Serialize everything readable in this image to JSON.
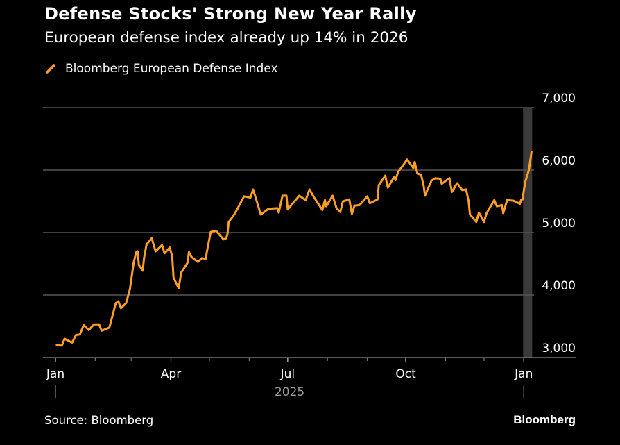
{
  "header": {
    "title": "Defense Stocks' Strong New Year Rally",
    "subtitle": "European defense index already up 14% in 2026"
  },
  "footer": {
    "source": "Source: Bloomberg",
    "brand": "Bloomberg"
  },
  "chart_data": {
    "type": "line",
    "title": "Defense Stocks' Strong New Year Rally",
    "subtitle": "European defense index already up 14% in 2026",
    "xlabel": "",
    "ylabel": "",
    "ylim": [
      3000,
      7000
    ],
    "xlim": [
      "2025-01-01",
      "2026-01-07"
    ],
    "y_ticks": [
      3000,
      4000,
      5000,
      6000,
      7000
    ],
    "y_tick_labels": [
      "3,000",
      "4,000",
      "5,000",
      "6,000",
      "7,000"
    ],
    "y_axis_position": "right",
    "x_ticks": [
      {
        "date": "2025-01-01",
        "label": "Jan"
      },
      {
        "date": "2025-04-01",
        "label": "Apr"
      },
      {
        "date": "2025-07-01",
        "label": "Jul"
      },
      {
        "date": "2025-10-01",
        "label": "Oct"
      },
      {
        "date": "2026-01-01",
        "label": "Jan"
      }
    ],
    "year_label": "2025",
    "grid": true,
    "legend_position": "top-left",
    "highlight_band": {
      "from": "2026-01-01",
      "to": "2026-01-07",
      "color": "#3a3a3a"
    },
    "colors": {
      "line": "#ff9e27",
      "background": "#000000",
      "grid": "#555555"
    },
    "series": [
      {
        "name": "Bloomberg European Defense Index",
        "points": [
          [
            "2025-01-02",
            3200
          ],
          [
            "2025-01-06",
            3190
          ],
          [
            "2025-01-08",
            3300
          ],
          [
            "2025-01-14",
            3240
          ],
          [
            "2025-01-17",
            3360
          ],
          [
            "2025-01-20",
            3370
          ],
          [
            "2025-01-23",
            3520
          ],
          [
            "2025-01-27",
            3440
          ],
          [
            "2025-01-31",
            3530
          ],
          [
            "2025-02-04",
            3530
          ],
          [
            "2025-02-06",
            3430
          ],
          [
            "2025-02-12",
            3480
          ],
          [
            "2025-02-17",
            3870
          ],
          [
            "2025-02-19",
            3900
          ],
          [
            "2025-02-21",
            3790
          ],
          [
            "2025-02-25",
            3870
          ],
          [
            "2025-02-28",
            4090
          ],
          [
            "2025-03-03",
            4530
          ],
          [
            "2025-03-05",
            4690
          ],
          [
            "2025-03-06",
            4700
          ],
          [
            "2025-03-07",
            4480
          ],
          [
            "2025-03-10",
            4390
          ],
          [
            "2025-03-11",
            4590
          ],
          [
            "2025-03-13",
            4810
          ],
          [
            "2025-03-17",
            4910
          ],
          [
            "2025-03-20",
            4700
          ],
          [
            "2025-03-25",
            4800
          ],
          [
            "2025-03-27",
            4670
          ],
          [
            "2025-03-31",
            4760
          ],
          [
            "2025-04-02",
            4620
          ],
          [
            "2025-04-03",
            4280
          ],
          [
            "2025-04-07",
            4110
          ],
          [
            "2025-04-09",
            4360
          ],
          [
            "2025-04-14",
            4520
          ],
          [
            "2025-04-15",
            4690
          ],
          [
            "2025-04-17",
            4610
          ],
          [
            "2025-04-22",
            4530
          ],
          [
            "2025-04-25",
            4590
          ],
          [
            "2025-04-28",
            4580
          ],
          [
            "2025-04-30",
            4800
          ],
          [
            "2025-05-02",
            5010
          ],
          [
            "2025-05-06",
            5030
          ],
          [
            "2025-05-12",
            4890
          ],
          [
            "2025-05-14",
            4910
          ],
          [
            "2025-05-15",
            4970
          ],
          [
            "2025-05-16",
            5170
          ],
          [
            "2025-05-21",
            5310
          ],
          [
            "2025-05-28",
            5580
          ],
          [
            "2025-06-02",
            5560
          ],
          [
            "2025-06-04",
            5690
          ],
          [
            "2025-06-06",
            5560
          ],
          [
            "2025-06-10",
            5290
          ],
          [
            "2025-06-16",
            5380
          ],
          [
            "2025-06-23",
            5390
          ],
          [
            "2025-06-24",
            5320
          ],
          [
            "2025-06-27",
            5590
          ],
          [
            "2025-06-30",
            5590
          ],
          [
            "2025-07-01",
            5370
          ],
          [
            "2025-07-10",
            5590
          ],
          [
            "2025-07-15",
            5520
          ],
          [
            "2025-07-18",
            5690
          ],
          [
            "2025-07-21",
            5580
          ],
          [
            "2025-07-28",
            5360
          ],
          [
            "2025-07-30",
            5520
          ],
          [
            "2025-07-31",
            5420
          ],
          [
            "2025-08-05",
            5590
          ],
          [
            "2025-08-08",
            5390
          ],
          [
            "2025-08-11",
            5330
          ],
          [
            "2025-08-13",
            5500
          ],
          [
            "2025-08-18",
            5530
          ],
          [
            "2025-08-20",
            5300
          ],
          [
            "2025-08-22",
            5430
          ],
          [
            "2025-08-26",
            5440
          ],
          [
            "2025-09-01",
            5580
          ],
          [
            "2025-09-03",
            5470
          ],
          [
            "2025-09-09",
            5530
          ],
          [
            "2025-09-10",
            5760
          ],
          [
            "2025-09-15",
            5910
          ],
          [
            "2025-09-17",
            5720
          ],
          [
            "2025-09-22",
            5890
          ],
          [
            "2025-09-23",
            5840
          ],
          [
            "2025-09-25",
            5970
          ],
          [
            "2025-09-29",
            6080
          ],
          [
            "2025-10-02",
            6170
          ],
          [
            "2025-10-07",
            6030
          ],
          [
            "2025-10-08",
            6130
          ],
          [
            "2025-10-10",
            5950
          ],
          [
            "2025-10-13",
            5920
          ],
          [
            "2025-10-15",
            5740
          ],
          [
            "2025-10-16",
            5590
          ],
          [
            "2025-10-21",
            5830
          ],
          [
            "2025-10-24",
            5870
          ],
          [
            "2025-10-28",
            5860
          ],
          [
            "2025-10-29",
            5780
          ],
          [
            "2025-11-04",
            5870
          ],
          [
            "2025-11-06",
            5650
          ],
          [
            "2025-11-10",
            5790
          ],
          [
            "2025-11-14",
            5680
          ],
          [
            "2025-11-17",
            5690
          ],
          [
            "2025-11-19",
            5500
          ],
          [
            "2025-11-20",
            5290
          ],
          [
            "2025-11-25",
            5170
          ],
          [
            "2025-11-27",
            5320
          ],
          [
            "2025-12-01",
            5170
          ],
          [
            "2025-12-03",
            5310
          ],
          [
            "2025-12-09",
            5520
          ],
          [
            "2025-12-11",
            5420
          ],
          [
            "2025-12-15",
            5440
          ],
          [
            "2025-12-16",
            5310
          ],
          [
            "2025-12-19",
            5520
          ],
          [
            "2025-12-24",
            5510
          ],
          [
            "2025-12-29",
            5460
          ],
          [
            "2025-12-30",
            5530
          ],
          [
            "2025-12-31",
            5530
          ],
          [
            "2026-01-02",
            5800
          ],
          [
            "2026-01-05",
            6000
          ],
          [
            "2026-01-07",
            6290
          ]
        ]
      }
    ]
  }
}
